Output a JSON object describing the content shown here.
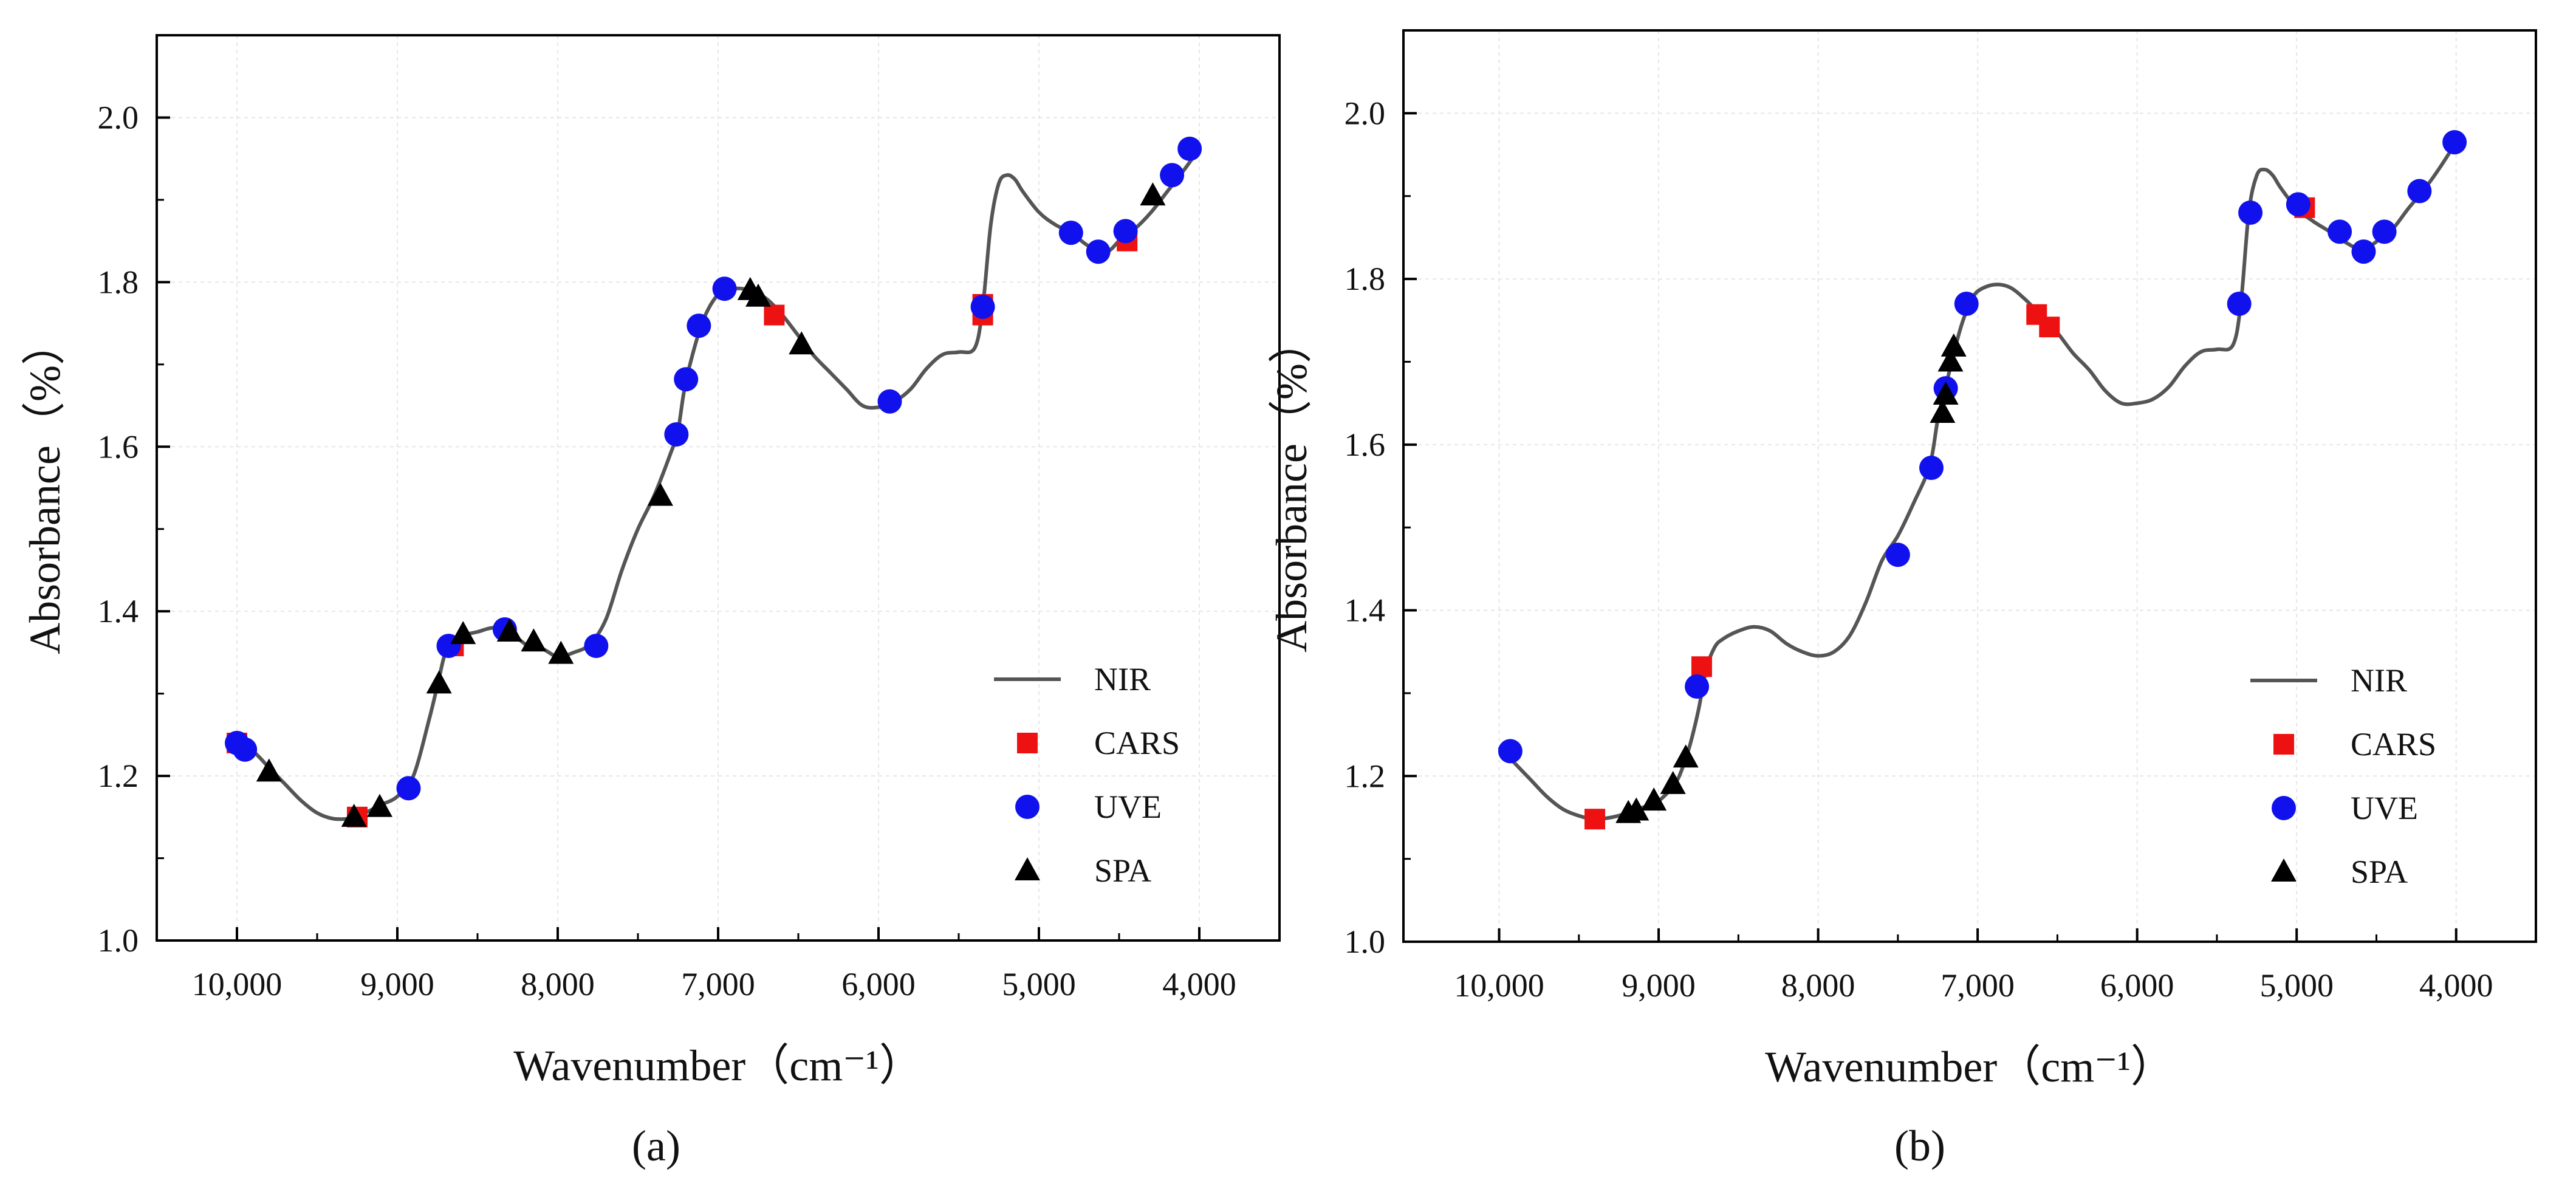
{
  "legend": {
    "nir": "NIR",
    "cars": "CARS",
    "uve": "UVE",
    "spa": "SPA"
  },
  "colors": {
    "nir": "#555555",
    "cars": "#ee1111",
    "uve": "#1111ee",
    "spa": "#000000"
  },
  "chart_data": [
    {
      "type": "line",
      "panel_label": "(a)",
      "xlabel": "Wavenumber（cm⁻¹）",
      "ylabel": "Absorbance（%）",
      "xlim": [
        10500,
        3500
      ],
      "ylim": [
        1.0,
        2.1
      ],
      "x_ticks": [
        10000,
        9000,
        8000,
        7000,
        6000,
        5000,
        4000
      ],
      "x_tick_labels": [
        "10,000",
        "9,000",
        "8,000",
        "7,000",
        "6,000",
        "5,000",
        "4,000"
      ],
      "y_ticks": [
        1.0,
        1.2,
        1.4,
        1.6,
        1.8,
        2.0
      ],
      "y_tick_labels": [
        "1.0",
        "1.2",
        "1.4",
        "1.6",
        "1.8",
        "2.0"
      ],
      "grid": true,
      "legend_position": "bottom-right",
      "nir_curve": {
        "x": [
          10000,
          9900,
          9800,
          9700,
          9600,
          9500,
          9400,
          9300,
          9250,
          9200,
          9100,
          9000,
          8900,
          8800,
          8750,
          8700,
          8650,
          8600,
          8500,
          8400,
          8300,
          8200,
          8100,
          8000,
          7900,
          7800,
          7700,
          7600,
          7500,
          7400,
          7300,
          7250,
          7200,
          7100,
          7000,
          6900,
          6800,
          6700,
          6600,
          6500,
          6400,
          6300,
          6200,
          6100,
          6000,
          5900,
          5800,
          5700,
          5600,
          5500,
          5400,
          5350,
          5300,
          5250,
          5200,
          5150,
          5100,
          5000,
          4900,
          4800,
          4700,
          4600,
          4550,
          4500,
          4400,
          4300,
          4200,
          4100,
          4000
        ],
        "y": [
          1.24,
          1.23,
          1.21,
          1.19,
          1.17,
          1.155,
          1.148,
          1.148,
          1.15,
          1.155,
          1.165,
          1.175,
          1.2,
          1.27,
          1.31,
          1.35,
          1.36,
          1.37,
          1.375,
          1.38,
          1.375,
          1.36,
          1.355,
          1.345,
          1.35,
          1.36,
          1.39,
          1.45,
          1.5,
          1.54,
          1.59,
          1.62,
          1.68,
          1.75,
          1.785,
          1.792,
          1.79,
          1.78,
          1.76,
          1.735,
          1.71,
          1.69,
          1.67,
          1.65,
          1.648,
          1.655,
          1.67,
          1.695,
          1.712,
          1.715,
          1.72,
          1.77,
          1.87,
          1.92,
          1.93,
          1.925,
          1.91,
          1.885,
          1.87,
          1.86,
          1.845,
          1.835,
          1.84,
          1.85,
          1.865,
          1.885,
          1.91,
          1.935,
          1.962
        ]
      },
      "series": [
        {
          "name": "CARS",
          "marker": "square",
          "x": [
            10000,
            9250,
            8650,
            6650,
            5350,
            5350,
            4450
          ],
          "y": [
            1.24,
            1.15,
            1.358,
            1.76,
            1.76,
            1.773,
            1.85
          ]
        },
        {
          "name": "UVE",
          "marker": "circle",
          "x": [
            10000,
            9950,
            8930,
            8680,
            8330,
            7760,
            7260,
            7200,
            7120,
            6960,
            5930,
            5350,
            4800,
            4630,
            4460,
            4170,
            4060
          ],
          "y": [
            1.24,
            1.232,
            1.185,
            1.358,
            1.378,
            1.358,
            1.615,
            1.682,
            1.747,
            1.792,
            1.655,
            1.77,
            1.86,
            1.837,
            1.862,
            1.93,
            1.962
          ]
        },
        {
          "name": "SPA",
          "marker": "triangle",
          "x": [
            9800,
            9270,
            9110,
            8740,
            8590,
            8300,
            8150,
            7980,
            7360,
            6800,
            6750,
            6480,
            4290
          ],
          "y": [
            1.205,
            1.15,
            1.162,
            1.312,
            1.372,
            1.375,
            1.363,
            1.348,
            1.54,
            1.79,
            1.782,
            1.724,
            1.905
          ]
        }
      ]
    },
    {
      "type": "line",
      "panel_label": "(b)",
      "xlabel": "Wavenumber（cm⁻¹）",
      "ylabel": "Absorbance（%）",
      "xlim": [
        10600,
        3500
      ],
      "ylim": [
        1.0,
        2.1
      ],
      "x_ticks": [
        10000,
        9000,
        8000,
        7000,
        6000,
        5000,
        4000
      ],
      "x_tick_labels": [
        "10,000",
        "9,000",
        "8,000",
        "7,000",
        "6,000",
        "5,000",
        "4,000"
      ],
      "y_ticks": [
        1.0,
        1.2,
        1.4,
        1.6,
        1.8,
        2.0
      ],
      "y_tick_labels": [
        "1.0",
        "1.2",
        "1.4",
        "1.6",
        "1.8",
        "2.0"
      ],
      "grid": true,
      "legend_position": "bottom-right",
      "nir_curve": {
        "x": [
          10000,
          9900,
          9800,
          9700,
          9600,
          9500,
          9400,
          9300,
          9200,
          9100,
          9000,
          8900,
          8850,
          8800,
          8750,
          8700,
          8650,
          8600,
          8500,
          8400,
          8300,
          8200,
          8100,
          8000,
          7900,
          7800,
          7700,
          7600,
          7500,
          7400,
          7300,
          7250,
          7200,
          7150,
          7100,
          7050,
          7000,
          6900,
          6800,
          6700,
          6600,
          6500,
          6400,
          6300,
          6200,
          6100,
          6000,
          5900,
          5800,
          5700,
          5600,
          5500,
          5400,
          5350,
          5300,
          5250,
          5200,
          5150,
          5100,
          5000,
          4900,
          4800,
          4700,
          4600,
          4550,
          4500,
          4400,
          4300,
          4200,
          4100,
          4000
        ],
        "y": [
          1.235,
          1.215,
          1.195,
          1.175,
          1.16,
          1.152,
          1.148,
          1.15,
          1.155,
          1.162,
          1.17,
          1.19,
          1.21,
          1.24,
          1.28,
          1.33,
          1.355,
          1.365,
          1.375,
          1.38,
          1.375,
          1.36,
          1.35,
          1.345,
          1.35,
          1.37,
          1.41,
          1.46,
          1.49,
          1.53,
          1.575,
          1.63,
          1.67,
          1.71,
          1.745,
          1.77,
          1.785,
          1.793,
          1.79,
          1.775,
          1.755,
          1.735,
          1.71,
          1.69,
          1.665,
          1.65,
          1.65,
          1.655,
          1.67,
          1.695,
          1.712,
          1.715,
          1.72,
          1.77,
          1.88,
          1.925,
          1.932,
          1.925,
          1.91,
          1.885,
          1.87,
          1.858,
          1.845,
          1.835,
          1.838,
          1.845,
          1.86,
          1.885,
          1.908,
          1.935,
          1.965
        ]
      },
      "series": [
        {
          "name": "CARS",
          "marker": "square",
          "x": [
            9400,
            8730,
            6630,
            6550,
            4950
          ],
          "y": [
            1.148,
            1.332,
            1.757,
            1.742,
            1.886
          ]
        },
        {
          "name": "UVE",
          "marker": "circle",
          "x": [
            9930,
            8760,
            7500,
            7290,
            7200,
            7070,
            5360,
            5290,
            4990,
            4730,
            4580,
            4450,
            4230,
            4010
          ],
          "y": [
            1.23,
            1.308,
            1.467,
            1.572,
            1.668,
            1.77,
            1.77,
            1.88,
            1.89,
            1.857,
            1.833,
            1.857,
            1.906,
            1.965
          ]
        },
        {
          "name": "SPA",
          "marker": "triangle",
          "x": [
            9190,
            9140,
            9030,
            8910,
            8830,
            7220,
            7200,
            7170,
            7150
          ],
          "y": [
            1.155,
            1.158,
            1.17,
            1.19,
            1.222,
            1.638,
            1.66,
            1.7,
            1.718
          ]
        }
      ]
    }
  ]
}
